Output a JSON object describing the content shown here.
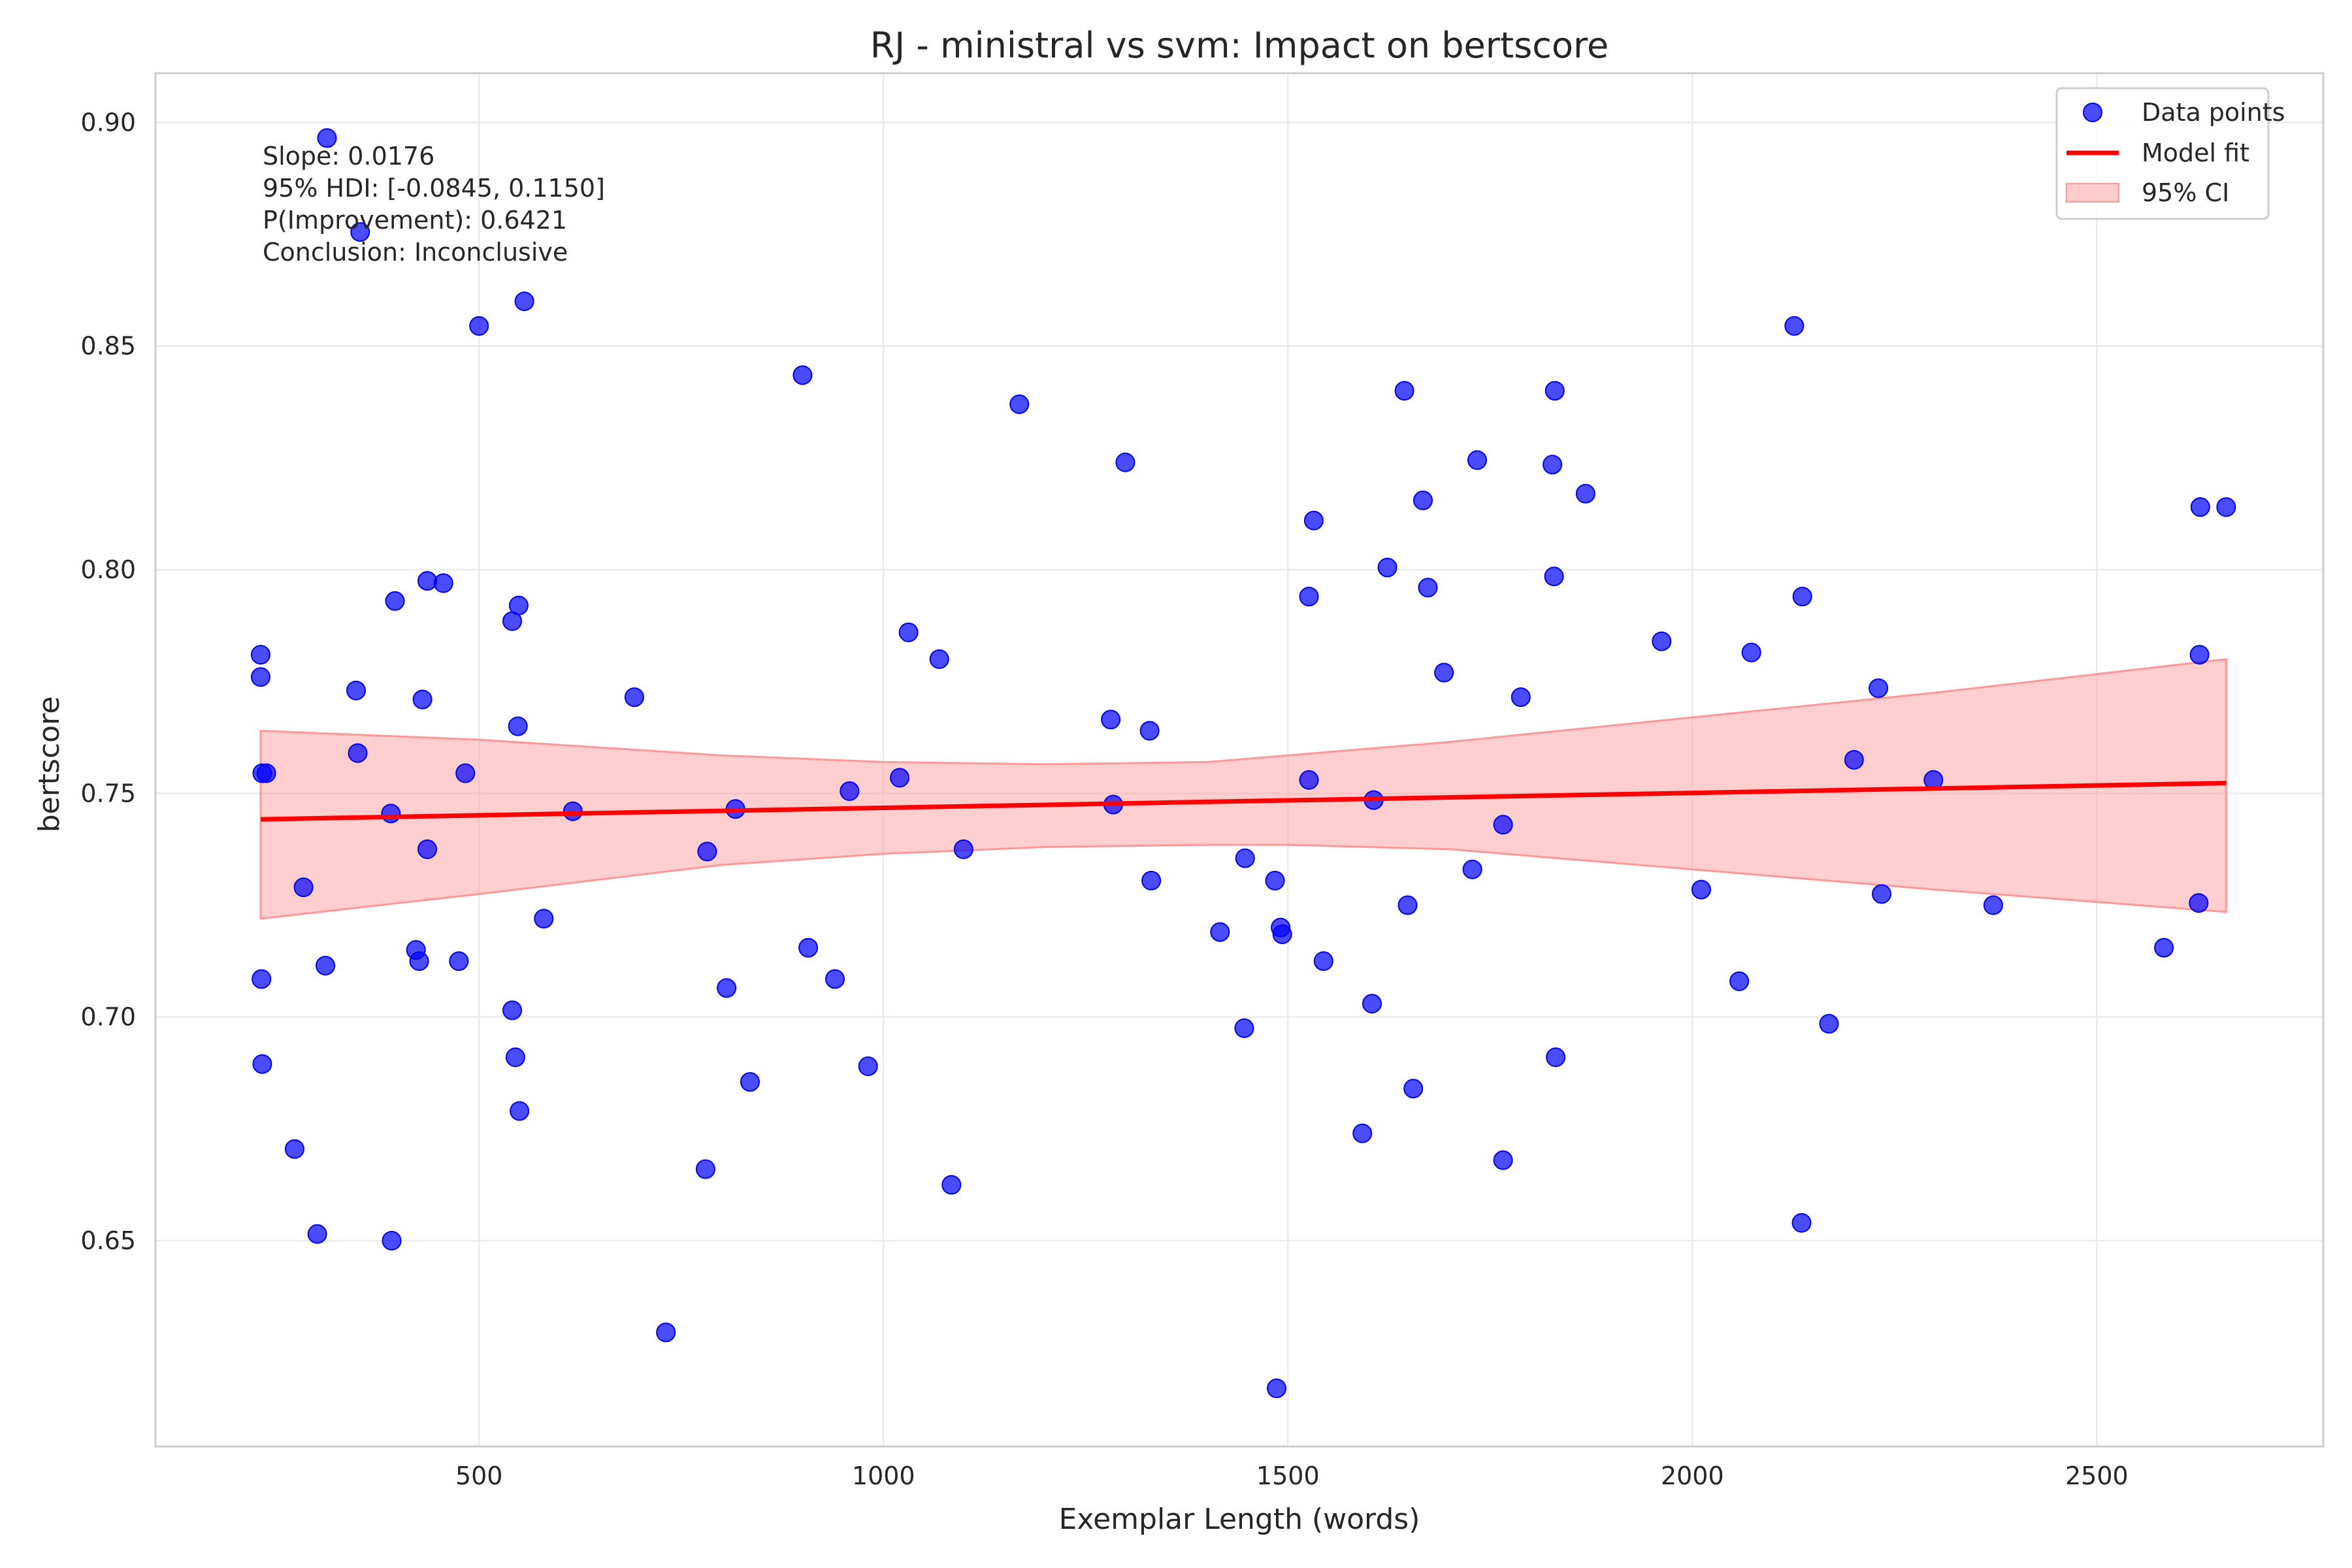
{
  "chart_data": {
    "type": "scatter",
    "title": "RJ - ministral vs svm: Impact on bertscore",
    "xlabel": "Exemplar Length (words)",
    "ylabel": "bertscore",
    "xlim": [
      100,
      2780
    ],
    "ylim": [
      0.604,
      0.911
    ],
    "xticks": [
      500,
      1000,
      1500,
      2000,
      2500
    ],
    "yticks": [
      0.65,
      0.7,
      0.75,
      0.8,
      0.85,
      0.9
    ],
    "ytick_labels": [
      "0.65",
      "0.70",
      "0.75",
      "0.80",
      "0.85",
      "0.90"
    ],
    "grid": true,
    "legend": {
      "placement": "top-right",
      "entries": [
        "Data points",
        "Model fit",
        "95% CI"
      ]
    },
    "colors": {
      "points": "#0000ff",
      "fit": "#ff0000",
      "ci": "#ff9999"
    },
    "annotation": [
      "Slope: 0.0176",
      "95% HDI: [-0.0845, 0.1150]",
      "P(Improvement): 0.6421",
      "Conclusion: Inconclusive"
    ],
    "fit": {
      "x": [
        230,
        2660
      ],
      "y": [
        0.7442,
        0.7523
      ]
    },
    "ci_band": {
      "x": [
        230,
        500,
        800,
        1000,
        1200,
        1400,
        1500,
        1700,
        2000,
        2300,
        2660
      ],
      "upper": [
        0.764,
        0.762,
        0.7585,
        0.757,
        0.7565,
        0.757,
        0.7585,
        0.7615,
        0.767,
        0.7725,
        0.78
      ],
      "lower": [
        0.722,
        0.7275,
        0.734,
        0.7365,
        0.738,
        0.7385,
        0.7385,
        0.7375,
        0.733,
        0.7285,
        0.7235
      ]
    },
    "series": [
      {
        "name": "Data points",
        "x": [
          230,
          230,
          231,
          232,
          232,
          237,
          272,
          283,
          300,
          310,
          312,
          348,
          350,
          353,
          391,
          392,
          396,
          422,
          426,
          430,
          436,
          436,
          456,
          475,
          483,
          500,
          541,
          541,
          545,
          548,
          549,
          550,
          556,
          580,
          616,
          692,
          731,
          780,
          782,
          806,
          817,
          835,
          900,
          907,
          940,
          958,
          981,
          1020,
          1031,
          1069,
          1084,
          1099,
          1168,
          1281,
          1284,
          1299,
          1329,
          1331,
          1416,
          1446,
          1447,
          1484,
          1486,
          1491,
          1493,
          1526,
          1526,
          1532,
          1544,
          1592,
          1604,
          1606,
          1623,
          1644,
          1648,
          1655,
          1667,
          1673,
          1693,
          1728,
          1734,
          1766,
          1766,
          1788,
          1827,
          1829,
          1830,
          1831,
          1868,
          1962,
          2011,
          2058,
          2073,
          2126,
          2135,
          2136,
          2169,
          2200,
          2230,
          2234,
          2298,
          2372,
          2583,
          2626,
          2627,
          2628,
          2660
        ],
        "y": [
          0.781,
          0.776,
          0.7085,
          0.6895,
          0.7545,
          0.7545,
          0.6705,
          0.729,
          0.6515,
          0.7115,
          0.8965,
          0.773,
          0.759,
          0.8755,
          0.7455,
          0.65,
          0.793,
          0.715,
          0.7125,
          0.771,
          0.7975,
          0.7375,
          0.797,
          0.7125,
          0.7545,
          0.8545,
          0.7015,
          0.7885,
          0.691,
          0.765,
          0.792,
          0.679,
          0.86,
          0.722,
          0.746,
          0.7715,
          0.6295,
          0.666,
          0.737,
          0.7065,
          0.7465,
          0.6855,
          0.8435,
          0.7155,
          0.7085,
          0.7505,
          0.689,
          0.7535,
          0.786,
          0.78,
          0.6625,
          0.7375,
          0.837,
          0.7665,
          0.7475,
          0.824,
          0.764,
          0.7305,
          0.719,
          0.6975,
          0.7355,
          0.7305,
          0.617,
          0.72,
          0.7185,
          0.753,
          0.794,
          0.811,
          0.7125,
          0.674,
          0.703,
          0.7485,
          0.8005,
          0.84,
          0.725,
          0.684,
          0.8155,
          0.796,
          0.777,
          0.733,
          0.8245,
          0.668,
          0.743,
          0.7715,
          0.8235,
          0.7985,
          0.84,
          0.691,
          0.817,
          0.784,
          0.7285,
          0.708,
          0.7815,
          0.8545,
          0.654,
          0.794,
          0.6985,
          0.7575,
          0.7735,
          0.7275,
          0.753,
          0.725,
          0.7155,
          0.7255,
          0.781,
          0.814,
          0.814
        ]
      }
    ]
  }
}
